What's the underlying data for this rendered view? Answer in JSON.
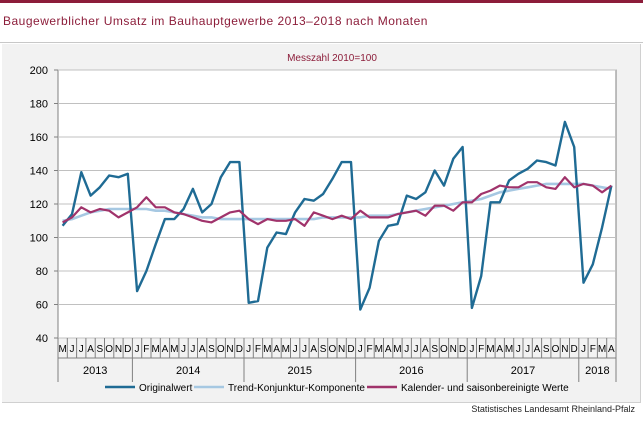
{
  "title": "Baugewerblicher Umsatz im Bauhauptgewerbe 2013–2018 nach Monaten",
  "source": "Statistisches Landesamt Rheinland-Pfalz",
  "colors": {
    "accent": "#8c1d3a",
    "original": "#1f6b94",
    "trend": "#a6c8e2",
    "adjusted": "#a0336b",
    "plot_bg": "#ffffff",
    "frame_bg": "#f2f2f2"
  },
  "chart_data": {
    "type": "line",
    "subtitle": "Messzahl 2010=100",
    "ylim": [
      40,
      200
    ],
    "yticks": [
      40,
      60,
      80,
      100,
      120,
      140,
      160,
      180,
      200
    ],
    "grid": true,
    "legend_position": "bottom",
    "month_labels": [
      "M",
      "J",
      "J",
      "A",
      "S",
      "O",
      "N",
      "D",
      "J",
      "F",
      "M",
      "A",
      "M",
      "J",
      "J",
      "A",
      "S",
      "O",
      "N",
      "D",
      "J",
      "F",
      "M",
      "A",
      "M",
      "J",
      "J",
      "A",
      "S",
      "O",
      "N",
      "D",
      "J",
      "F",
      "M",
      "A",
      "M",
      "J",
      "J",
      "A",
      "S",
      "O",
      "N",
      "D",
      "J",
      "F",
      "M",
      "A",
      "M",
      "J",
      "J",
      "A",
      "S",
      "O",
      "N",
      "D",
      "J",
      "F",
      "M",
      "A"
    ],
    "years": [
      {
        "label": "2013",
        "start": 0,
        "count": 8
      },
      {
        "label": "2014",
        "start": 8,
        "count": 12
      },
      {
        "label": "2015",
        "start": 20,
        "count": 12
      },
      {
        "label": "2016",
        "start": 32,
        "count": 12
      },
      {
        "label": "2017",
        "start": 44,
        "count": 12
      },
      {
        "label": "2018",
        "start": 56,
        "count": 4
      }
    ],
    "series": [
      {
        "name": "Originalwert",
        "color": "#1f6b94",
        "values": [
          107,
          114,
          139,
          125,
          130,
          137,
          136,
          138,
          68,
          80,
          96,
          111,
          111,
          117,
          129,
          115,
          120,
          136,
          145,
          145,
          61,
          62,
          94,
          103,
          102,
          115,
          123,
          122,
          126,
          135,
          145,
          145,
          57,
          70,
          98,
          107,
          108,
          125,
          123,
          127,
          140,
          131,
          147,
          154,
          58,
          77,
          121,
          121,
          134,
          138,
          141,
          146,
          145,
          143,
          169,
          154,
          73,
          84,
          106,
          131
        ]
      },
      {
        "name": "Trend-Konjunktur-Komponente",
        "color": "#a6c8e2",
        "values": [
          110,
          111,
          113,
          115,
          116,
          117,
          117,
          117,
          117,
          117,
          116,
          116,
          115,
          114,
          113,
          112,
          112,
          111,
          111,
          111,
          111,
          111,
          111,
          111,
          111,
          111,
          111,
          111,
          112,
          112,
          112,
          112,
          112,
          113,
          113,
          113,
          114,
          115,
          116,
          117,
          118,
          119,
          120,
          121,
          122,
          123,
          125,
          127,
          128,
          129,
          130,
          131,
          132,
          132,
          132,
          132,
          132,
          131,
          130,
          129
        ]
      },
      {
        "name": "Kalender- und saisonbereinigte Werte",
        "color": "#a0336b",
        "values": [
          109,
          112,
          118,
          115,
          117,
          116,
          112,
          115,
          118,
          124,
          118,
          118,
          115,
          114,
          112,
          110,
          109,
          112,
          115,
          116,
          111,
          108,
          111,
          110,
          110,
          111,
          107,
          115,
          113,
          111,
          113,
          111,
          116,
          112,
          112,
          112,
          114,
          115,
          116,
          113,
          119,
          119,
          116,
          121,
          121,
          126,
          128,
          131,
          130,
          130,
          133,
          133,
          130,
          129,
          136,
          130,
          132,
          131,
          127,
          131
        ]
      }
    ]
  }
}
